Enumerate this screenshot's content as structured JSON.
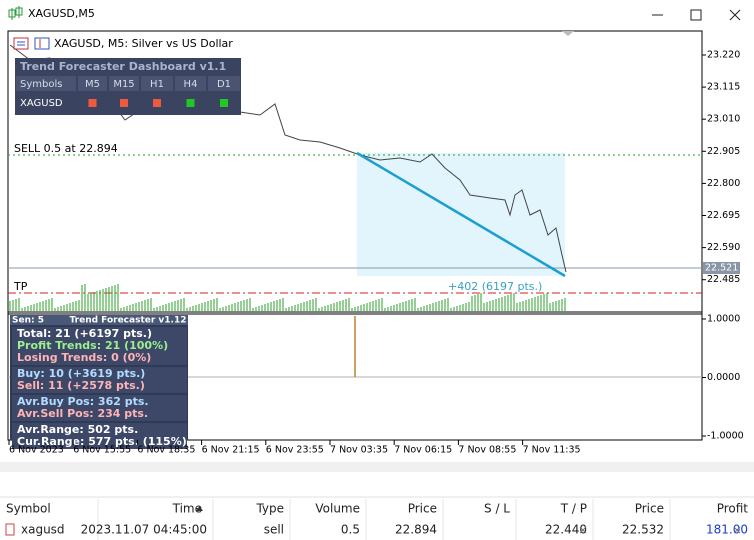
{
  "window": {
    "title": "XAGUSD,M5"
  },
  "chart": {
    "symbol_label": "XAGUSD, M5:  Silver vs US Dollar",
    "price_ticks": [
      "23.220",
      "23.115",
      "23.010",
      "22.905",
      "22.800",
      "22.695",
      "22.590",
      "22.485"
    ],
    "current_price": "22.521",
    "sell_line_label": "SELL 0.5 at 22.894",
    "tp_label": "TP",
    "trend_label": "+402 (6197 pts.)",
    "time_ticks": [
      "6 Nov 2023",
      "6 Nov 15:55",
      "6 Nov 18:35",
      "6 Nov 21:15",
      "6 Nov 23:55",
      "7 Nov 03:35",
      "7 Nov 06:15",
      "7 Nov 08:55",
      "7 Nov 11:35"
    ],
    "indicator_ticks": [
      "1.0000",
      "0.0000",
      "-1.0000"
    ]
  },
  "dashboard": {
    "title": "Trend Forecaster Dashboard v1.1",
    "headers": [
      "Symbols",
      "M5",
      "M15",
      "H1",
      "H4",
      "D1"
    ],
    "rows": [
      {
        "symbol": "XAGUSD",
        "signal_colors": [
          "#f05a3c",
          "#f05a3c",
          "#f05a3c",
          "#22c822",
          "#22c822"
        ]
      }
    ]
  },
  "stats_panel": {
    "header_left": "Sen: 5",
    "header_title": "Trend Forecaster v1.12",
    "groups": [
      [
        {
          "text": "Total: 21 (+6197 pts.)",
          "color": "#ffffff"
        },
        {
          "text": "Profit Trends: 21 (100%)",
          "color": "#9cf08c"
        },
        {
          "text": "Losing Trends: 0 (0%)",
          "color": "#ffb4b4"
        }
      ],
      [
        {
          "text": "Buy: 10 (+3619 pts.)",
          "color": "#b4dcff"
        },
        {
          "text": "Sell: 11 (+2578 pts.)",
          "color": "#ffb4b4"
        }
      ],
      [
        {
          "text": "Avr.Buy Pos: 362 pts.",
          "color": "#b4dcff"
        },
        {
          "text": "Avr.Sell Pos: 234 pts.",
          "color": "#ffb4b4"
        }
      ],
      [
        {
          "text": "Avr.Range: 502 pts.",
          "color": "#ffffff"
        },
        {
          "text": "Cur.Range: 577 pts. (115%)",
          "color": "#ffffff"
        }
      ]
    ]
  },
  "positions": {
    "headers": [
      "Symbol",
      "Time",
      "Type",
      "Volume",
      "Price",
      "S / L",
      "T / P",
      "Price",
      "Profit"
    ],
    "row": {
      "symbol": "xagusd",
      "time": "2023.11.07 04:45:00",
      "type": "sell",
      "volume": "0.5",
      "open_price": "22.894",
      "tp": "22.440",
      "price": "22.532",
      "profit": "181.00"
    }
  }
}
